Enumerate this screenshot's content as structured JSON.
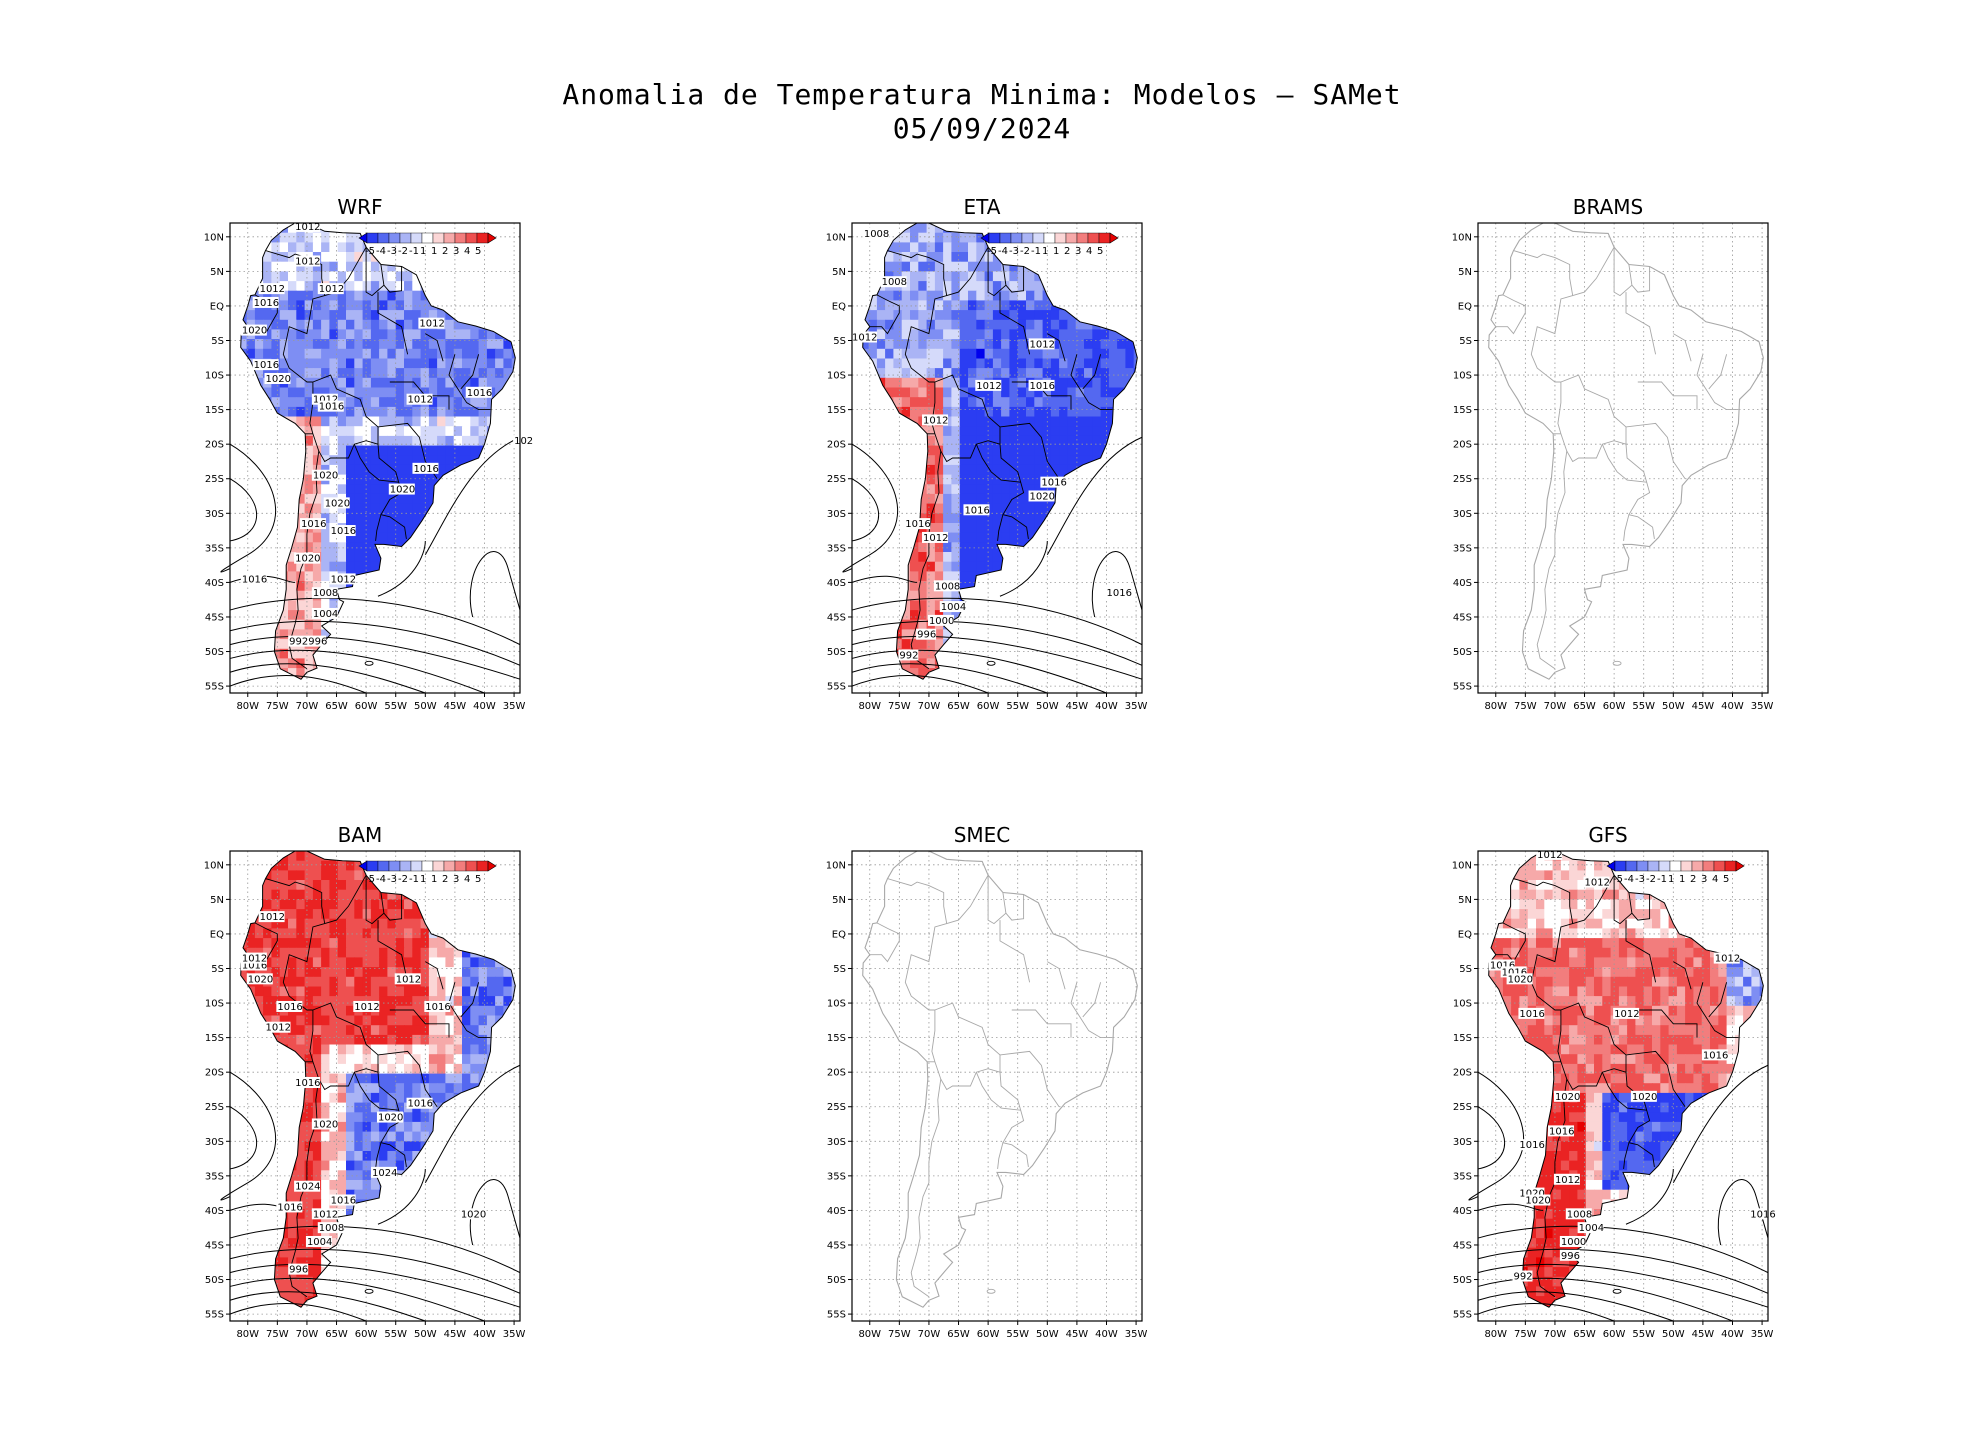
{
  "figure": {
    "title_line1": "Anomalia de Temperatura Minima: Modelos – SAMet",
    "title_line2": "05/09/2024"
  },
  "axes": {
    "lat_labels": [
      "10N",
      "5N",
      "EQ",
      "5S",
      "10S",
      "15S",
      "20S",
      "25S",
      "30S",
      "35S",
      "40S",
      "45S",
      "50S",
      "55S"
    ],
    "lon_labels": [
      "80W",
      "75W",
      "70W",
      "65W",
      "60W",
      "55W",
      "50W",
      "45W",
      "40W",
      "35W"
    ],
    "lat_range": [
      -56,
      12
    ],
    "lon_range": [
      -83,
      -34
    ]
  },
  "colorbar": {
    "labels": [
      "-5",
      "-4",
      "-3",
      "-2",
      "-1",
      "1",
      "1",
      "2",
      "3",
      "4",
      "5"
    ],
    "colors": [
      "#0000ee",
      "#2b3df2",
      "#5468f0",
      "#7e8ef3",
      "#aab4f5",
      "#d5dafa",
      "#ffffff",
      "#fbd6d6",
      "#f6a9a9",
      "#f27d7d",
      "#ee5050",
      "#ea2323",
      "#e60000"
    ]
  },
  "panels": [
    {
      "name": "WRF",
      "has_data": true,
      "style": "cold",
      "isobars": [
        {
          "label": "1012",
          "lon": -72,
          "lat": 11
        },
        {
          "label": "1012",
          "lon": -72,
          "lat": 6
        },
        {
          "label": "1012",
          "lon": -78,
          "lat": 2
        },
        {
          "label": "1016",
          "lon": -79,
          "lat": 0
        },
        {
          "label": "1012",
          "lon": -68,
          "lat": 2
        },
        {
          "label": "1020",
          "lon": -81,
          "lat": -4
        },
        {
          "label": "1016",
          "lon": -79,
          "lat": -9
        },
        {
          "label": "1020",
          "lon": -77,
          "lat": -11
        },
        {
          "label": "1012",
          "lon": -51,
          "lat": -3
        },
        {
          "label": "1012",
          "lon": -53,
          "lat": -14
        },
        {
          "label": "1016",
          "lon": -43,
          "lat": -13
        },
        {
          "label": "1012",
          "lon": -69,
          "lat": -14
        },
        {
          "label": "1016",
          "lon": -68,
          "lat": -15
        },
        {
          "label": "102",
          "lon": -35,
          "lat": -20
        },
        {
          "label": "1016",
          "lon": -52,
          "lat": -24
        },
        {
          "label": "1020",
          "lon": -56,
          "lat": -27
        },
        {
          "label": "1020",
          "lon": -69,
          "lat": -25
        },
        {
          "label": "1020",
          "lon": -67,
          "lat": -29
        },
        {
          "label": "1016",
          "lon": -71,
          "lat": -32
        },
        {
          "label": "1016",
          "lon": -66,
          "lat": -33
        },
        {
          "label": "1020",
          "lon": -72,
          "lat": -37
        },
        {
          "label": "1016",
          "lon": -81,
          "lat": -40
        },
        {
          "label": "1012",
          "lon": -66,
          "lat": -40
        },
        {
          "label": "1008",
          "lon": -69,
          "lat": -42
        },
        {
          "label": "1004",
          "lon": -69,
          "lat": -45
        },
        {
          "label": "992996",
          "lon": -73,
          "lat": -49
        }
      ]
    },
    {
      "name": "ETA",
      "has_data": true,
      "style": "cold2",
      "isobars": [
        {
          "label": "1008",
          "lon": -81,
          "lat": 10
        },
        {
          "label": "1008",
          "lon": -78,
          "lat": 3
        },
        {
          "label": "1012",
          "lon": -83,
          "lat": -5
        },
        {
          "label": "1012",
          "lon": -53,
          "lat": -6
        },
        {
          "label": "1016",
          "lon": -53,
          "lat": -12
        },
        {
          "label": "1012",
          "lon": -62,
          "lat": -12
        },
        {
          "label": "1012",
          "lon": -71,
          "lat": -17
        },
        {
          "label": "1016",
          "lon": -51,
          "lat": -26
        },
        {
          "label": "1020",
          "lon": -53,
          "lat": -28
        },
        {
          "label": "1016",
          "lon": -64,
          "lat": -30
        },
        {
          "label": "1016",
          "lon": -74,
          "lat": -32
        },
        {
          "label": "1012",
          "lon": -71,
          "lat": -34
        },
        {
          "label": "1016",
          "lon": -40,
          "lat": -42
        },
        {
          "label": "1008",
          "lon": -69,
          "lat": -41
        },
        {
          "label": "1004",
          "lon": -68,
          "lat": -44
        },
        {
          "label": "1000",
          "lon": -70,
          "lat": -46
        },
        {
          "label": "996",
          "lon": -72,
          "lat": -48
        },
        {
          "label": "992",
          "lon": -75,
          "lat": -51
        }
      ]
    },
    {
      "name": "BRAMS",
      "has_data": false,
      "style": "empty",
      "isobars": []
    },
    {
      "name": "BAM",
      "has_data": true,
      "style": "warm",
      "isobars": [
        {
          "label": "1012",
          "lon": -78,
          "lat": 2
        },
        {
          "label": "1016",
          "lon": -81,
          "lat": -5
        },
        {
          "label": "1012",
          "lon": -81,
          "lat": -4
        },
        {
          "label": "1020",
          "lon": -80,
          "lat": -7
        },
        {
          "label": "1012",
          "lon": -55,
          "lat": -7
        },
        {
          "label": "1016",
          "lon": -75,
          "lat": -11
        },
        {
          "label": "1012",
          "lon": -62,
          "lat": -11
        },
        {
          "label": "1016",
          "lon": -50,
          "lat": -11
        },
        {
          "label": "1012",
          "lon": -77,
          "lat": -14
        },
        {
          "label": "1016",
          "lon": -72,
          "lat": -22
        },
        {
          "label": "1016",
          "lon": -53,
          "lat": -25
        },
        {
          "label": "1020",
          "lon": -58,
          "lat": -27
        },
        {
          "label": "1020",
          "lon": -69,
          "lat": -28
        },
        {
          "label": "1024",
          "lon": -59,
          "lat": -35
        },
        {
          "label": "1024",
          "lon": -72,
          "lat": -37
        },
        {
          "label": "1016",
          "lon": -66,
          "lat": -39
        },
        {
          "label": "1016",
          "lon": -75,
          "lat": -40
        },
        {
          "label": "1012",
          "lon": -69,
          "lat": -41
        },
        {
          "label": "1020",
          "lon": -44,
          "lat": -41
        },
        {
          "label": "1008",
          "lon": -68,
          "lat": -43
        },
        {
          "label": "1004",
          "lon": -70,
          "lat": -45
        },
        {
          "label": "996",
          "lon": -73,
          "lat": -49
        }
      ]
    },
    {
      "name": "SMEC",
      "has_data": false,
      "style": "empty",
      "isobars": []
    },
    {
      "name": "GFS",
      "has_data": true,
      "style": "warm2",
      "isobars": [
        {
          "label": "1012",
          "lon": -73,
          "lat": 11
        },
        {
          "label": "1012",
          "lon": -65,
          "lat": 7
        },
        {
          "label": "1016",
          "lon": -81,
          "lat": -5
        },
        {
          "label": "1016",
          "lon": -79,
          "lat": -6
        },
        {
          "label": "1020",
          "lon": -78,
          "lat": -7
        },
        {
          "label": "1012",
          "lon": -43,
          "lat": -4
        },
        {
          "label": "1016",
          "lon": -76,
          "lat": -12
        },
        {
          "label": "1012",
          "lon": -60,
          "lat": -12
        },
        {
          "label": "1016",
          "lon": -45,
          "lat": -18
        },
        {
          "label": "1020",
          "lon": -70,
          "lat": -24
        },
        {
          "label": "1020",
          "lon": -57,
          "lat": -24
        },
        {
          "label": "1016",
          "lon": -71,
          "lat": -29
        },
        {
          "label": "1016",
          "lon": -76,
          "lat": -31
        },
        {
          "label": "1012",
          "lon": -70,
          "lat": -36
        },
        {
          "label": "1020",
          "lon": -76,
          "lat": -38
        },
        {
          "label": "1020",
          "lon": -75,
          "lat": -39
        },
        {
          "label": "1008",
          "lon": -68,
          "lat": -41
        },
        {
          "label": "1016",
          "lon": -37,
          "lat": -41
        },
        {
          "label": "1004",
          "lon": -66,
          "lat": -43
        },
        {
          "label": "1000",
          "lon": -69,
          "lat": -45
        },
        {
          "label": "996",
          "lon": -69,
          "lat": -47
        },
        {
          "label": "992",
          "lon": -77,
          "lat": -50
        }
      ]
    }
  ]
}
